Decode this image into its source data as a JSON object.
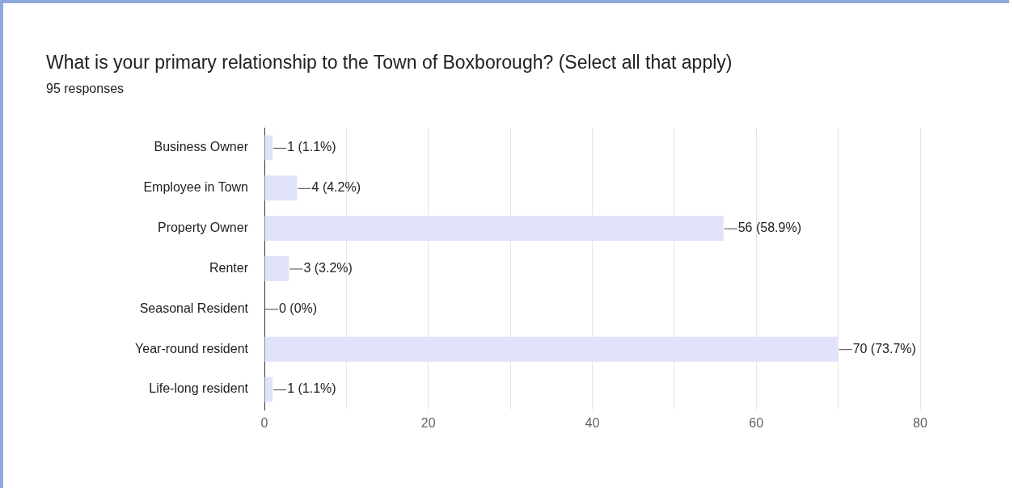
{
  "chart_data": {
    "type": "bar",
    "orientation": "horizontal",
    "title": "What is your primary relationship to the Town of Boxborough? (Select all that apply)",
    "subtitle": "95 responses",
    "categories": [
      "Business Owner",
      "Employee in Town",
      "Property Owner",
      "Renter",
      "Seasonal Resident",
      "Year-round resident",
      "Life-long resident"
    ],
    "series": [
      {
        "color": "#e0e3fb",
        "values": [
          1,
          4,
          56,
          3,
          0,
          70,
          1
        ],
        "value_labels": [
          "1 (1.1%)",
          "4 (4.2%)",
          "56 (58.9%)",
          "3 (3.2%)",
          "0 (0%)",
          "70 (73.7%)",
          "1 (1.1%)"
        ]
      }
    ],
    "xlim": [
      0,
      80
    ],
    "xticks": [
      0,
      {
        "value": 10,
        "label": null
      },
      20,
      {
        "value": 30,
        "label": null
      },
      40,
      {
        "value": 50,
        "label": null
      },
      60,
      {
        "value": 70,
        "label": null
      },
      80
    ],
    "grid": "x",
    "legend": false
  }
}
